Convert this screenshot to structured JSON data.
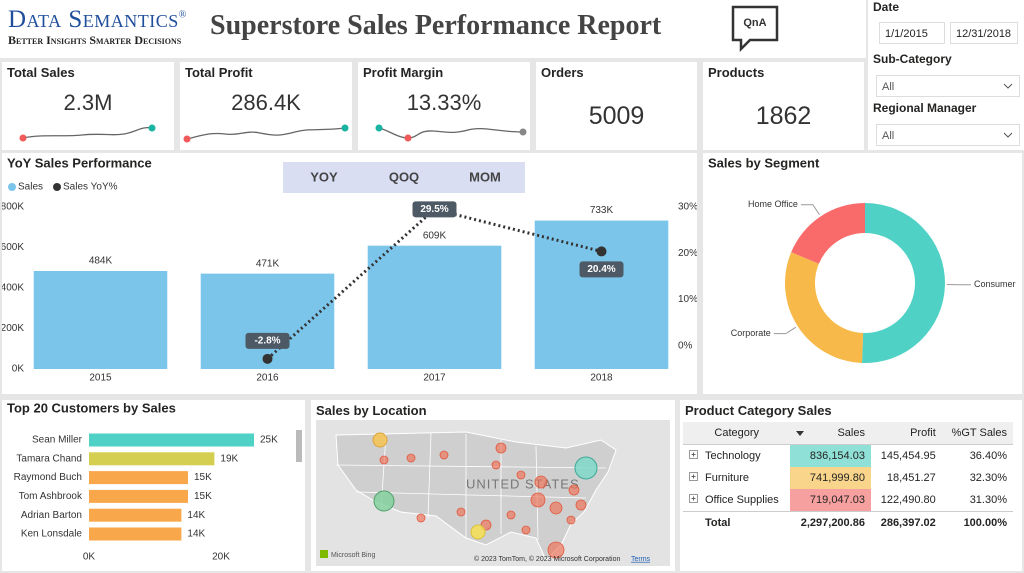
{
  "header": {
    "brand": "Data Semantics",
    "registered": "®",
    "tagline": "Better Insights Smarter Decisions",
    "title": "Superstore Sales Performance Report",
    "qna": "QnA"
  },
  "filters": {
    "date_label": "Date",
    "date_from": "1/1/2015",
    "date_to": "12/31/2018",
    "subcategory_label": "Sub-Category",
    "subcategory_value": "All",
    "manager_label": "Regional Manager",
    "manager_value": "All"
  },
  "kpis": [
    {
      "label": "Total Sales",
      "value": "2.3M"
    },
    {
      "label": "Total Profit",
      "value": "286.4K"
    },
    {
      "label": "Profit Margin",
      "value": "13.33%"
    },
    {
      "label": "Orders",
      "value": "5009"
    },
    {
      "label": "Products",
      "value": "1862"
    }
  ],
  "chart_data": [
    {
      "type": "bar",
      "title": "YoY Sales Performance",
      "buttons": [
        "YOY",
        "QOQ",
        "MOM"
      ],
      "categories": [
        "2015",
        "2016",
        "2017",
        "2018"
      ],
      "series": [
        {
          "name": "Sales",
          "color": "#7cc5ea",
          "values": [
            484000,
            471000,
            609000,
            733000
          ],
          "value_labels": [
            "484K",
            "471K",
            "609K",
            "733K"
          ]
        },
        {
          "name": "Sales YoY%",
          "type": "line",
          "axis": "y2",
          "color": "#333333",
          "values": [
            null,
            -2.8,
            29.5,
            20.4
          ],
          "value_labels": [
            null,
            "-2.8%",
            "29.5%",
            "20.4%"
          ]
        }
      ],
      "ylim": [
        0,
        800000
      ],
      "yticks": [
        {
          "value": 0,
          "label": "0K"
        },
        {
          "value": 200000,
          "label": "200K"
        },
        {
          "value": 400000,
          "label": "400K"
        },
        {
          "value": 600000,
          "label": "600K"
        },
        {
          "value": 800000,
          "label": "800K"
        }
      ],
      "y2lim": [
        -5,
        30
      ],
      "y2ticks": [
        {
          "value": 0,
          "label": "0%"
        },
        {
          "value": 10,
          "label": "10%"
        },
        {
          "value": 20,
          "label": "20%"
        },
        {
          "value": 30,
          "label": "30%"
        }
      ],
      "grid": false
    },
    {
      "type": "donut",
      "title": "Sales by Segment",
      "categories": [
        "Consumer",
        "Corporate",
        "Home Office"
      ],
      "values": [
        50.6,
        30.7,
        18.7
      ],
      "colors": [
        "#4fd1c5",
        "#f7b94a",
        "#f96b6b"
      ]
    },
    {
      "type": "bar",
      "orientation": "horizontal",
      "title": "Top 20 Customers by Sales",
      "categories": [
        "Sean Miller",
        "Tamara Chand",
        "Raymond Buch",
        "Tom Ashbrook",
        "Adrian Barton",
        "Ken Lonsdale"
      ],
      "values": [
        25000,
        19000,
        15000,
        15000,
        14000,
        14000
      ],
      "value_labels": [
        "25K",
        "19K",
        "15K",
        "15K",
        "14K",
        "14K"
      ],
      "colors": [
        "#4fd1c5",
        "#d4cf50",
        "#f9a74b",
        "#f9a74b",
        "#f9a74b",
        "#f9a74b"
      ],
      "xlim": [
        0,
        30000
      ],
      "xticks": [
        {
          "value": 0,
          "label": "0K"
        },
        {
          "value": 20000,
          "label": "20K"
        }
      ]
    }
  ],
  "map": {
    "title": "Sales by Location",
    "country": "UNITED STATES",
    "bing": "Microsoft Bing",
    "credit": "© 2023 TomTom, © 2023 Microsoft Corporation",
    "terms": "Terms"
  },
  "table": {
    "title": "Product Category Sales",
    "columns": [
      "Category",
      "Sales",
      "Profit",
      "%GT Sales"
    ],
    "rows": [
      [
        "Technology",
        "836,154.03",
        "145,454.95",
        "36.40%"
      ],
      [
        "Furniture",
        "741,999.80",
        "18,451.27",
        "32.30%"
      ],
      [
        "Office Supplies",
        "719,047.03",
        "122,490.80",
        "31.30%"
      ]
    ],
    "total": [
      "Total",
      "2,297,200.86",
      "286,397.02",
      "100.00%"
    ]
  }
}
